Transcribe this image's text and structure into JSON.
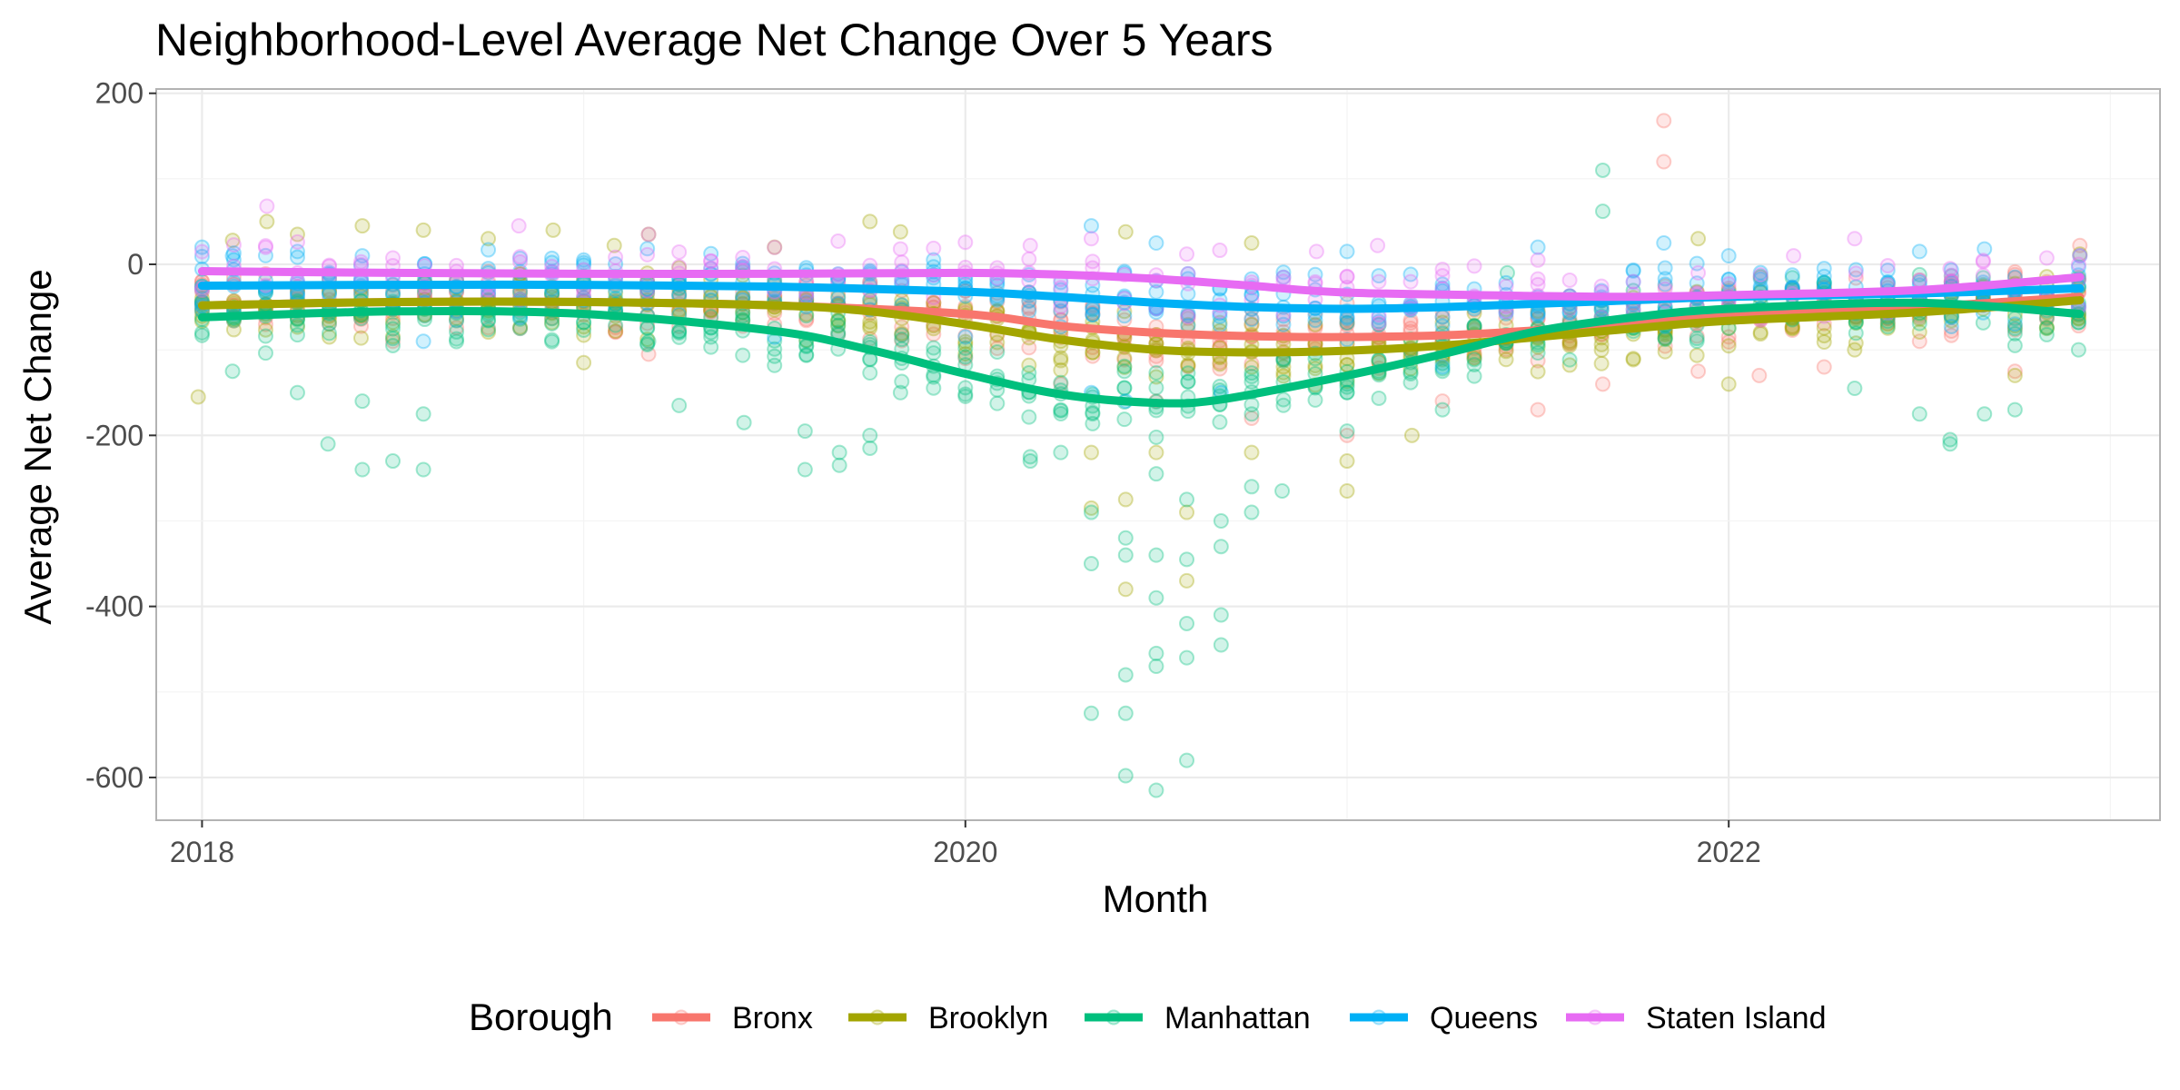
{
  "chart_data": {
    "type": "scatter",
    "title": "Neighborhood-Level Average Net Change Over 5 Years",
    "xlabel": "Month",
    "ylabel": "Average Net Change",
    "xlim": [
      2017.88,
      2023.13
    ],
    "ylim": [
      -650,
      205
    ],
    "x_ticks": [
      2018,
      2020,
      2022
    ],
    "x_tick_labels": [
      "2018",
      "2020",
      "2022"
    ],
    "y_ticks": [
      200,
      0,
      -200,
      -400,
      -600
    ],
    "y_tick_labels": [
      "200",
      "0",
      "-200",
      "-400",
      "-600"
    ],
    "grid": true,
    "legend": {
      "title": "Borough",
      "position": "bottom",
      "entries": [
        "Bronx",
        "Brooklyn",
        "Manhattan",
        "Queens",
        "Staten Island"
      ]
    },
    "colors": {
      "Bronx": "#F8766D",
      "Brooklyn": "#A3A500",
      "Manhattan": "#00BF7D",
      "Queens": "#00B0F6",
      "Staten Island": "#E76BF3"
    },
    "series": [
      {
        "name": "Bronx",
        "smooth": [
          [
            2018.0,
            -48
          ],
          [
            2018.5,
            -44
          ],
          [
            2019.0,
            -44
          ],
          [
            2019.5,
            -48
          ],
          [
            2020.0,
            -58
          ],
          [
            2020.25,
            -72
          ],
          [
            2020.5,
            -80
          ],
          [
            2020.75,
            -84
          ],
          [
            2021.0,
            -85
          ],
          [
            2021.25,
            -83
          ],
          [
            2021.5,
            -77
          ],
          [
            2021.75,
            -68
          ],
          [
            2022.0,
            -60
          ],
          [
            2022.5,
            -50
          ],
          [
            2022.92,
            -38
          ]
        ],
        "points": [
          [
            2018.0,
            -20
          ],
          [
            2018.25,
            -60
          ],
          [
            2018.5,
            -90
          ],
          [
            2019.17,
            -105
          ],
          [
            2019.5,
            -70
          ],
          [
            2020.0,
            -110
          ],
          [
            2020.25,
            -140
          ],
          [
            2020.5,
            -160
          ],
          [
            2020.75,
            -180
          ],
          [
            2021.0,
            -200
          ],
          [
            2021.25,
            -160
          ],
          [
            2021.5,
            -170
          ],
          [
            2021.67,
            -140
          ],
          [
            2021.83,
            168
          ],
          [
            2021.83,
            120
          ],
          [
            2021.92,
            -125
          ],
          [
            2022.08,
            -130
          ],
          [
            2022.25,
            -120
          ],
          [
            2022.5,
            -90
          ],
          [
            2022.75,
            -125
          ],
          [
            2022.92,
            22
          ]
        ]
      },
      {
        "name": "Brooklyn",
        "smooth": [
          [
            2018.0,
            -48
          ],
          [
            2018.5,
            -44
          ],
          [
            2019.0,
            -44
          ],
          [
            2019.5,
            -48
          ],
          [
            2019.75,
            -55
          ],
          [
            2020.0,
            -70
          ],
          [
            2020.25,
            -88
          ],
          [
            2020.5,
            -100
          ],
          [
            2020.75,
            -103
          ],
          [
            2021.0,
            -101
          ],
          [
            2021.25,
            -95
          ],
          [
            2021.5,
            -85
          ],
          [
            2021.75,
            -75
          ],
          [
            2022.0,
            -66
          ],
          [
            2022.5,
            -56
          ],
          [
            2022.92,
            -42
          ]
        ],
        "points": [
          [
            2017.99,
            -155
          ],
          [
            2018.08,
            28
          ],
          [
            2018.17,
            50
          ],
          [
            2018.25,
            35
          ],
          [
            2018.42,
            45
          ],
          [
            2018.58,
            40
          ],
          [
            2018.75,
            30
          ],
          [
            2018.92,
            40
          ],
          [
            2019.0,
            -115
          ],
          [
            2019.08,
            22
          ],
          [
            2019.17,
            35
          ],
          [
            2019.5,
            20
          ],
          [
            2019.75,
            50
          ],
          [
            2019.83,
            38
          ],
          [
            2020.33,
            -220
          ],
          [
            2020.33,
            -285
          ],
          [
            2020.42,
            38
          ],
          [
            2020.42,
            -275
          ],
          [
            2020.42,
            -380
          ],
          [
            2020.5,
            -220
          ],
          [
            2020.58,
            -290
          ],
          [
            2020.58,
            -370
          ],
          [
            2020.75,
            25
          ],
          [
            2020.75,
            -220
          ],
          [
            2021.0,
            -230
          ],
          [
            2021.0,
            -265
          ],
          [
            2021.17,
            -200
          ],
          [
            2021.92,
            30
          ],
          [
            2022.0,
            -140
          ],
          [
            2022.33,
            -100
          ],
          [
            2022.75,
            -130
          ],
          [
            2022.92,
            12
          ]
        ]
      },
      {
        "name": "Manhattan",
        "smooth": [
          [
            2018.0,
            -62
          ],
          [
            2018.5,
            -55
          ],
          [
            2019.0,
            -58
          ],
          [
            2019.5,
            -78
          ],
          [
            2019.75,
            -100
          ],
          [
            2020.0,
            -128
          ],
          [
            2020.25,
            -152
          ],
          [
            2020.5,
            -162
          ],
          [
            2020.67,
            -158
          ],
          [
            2021.0,
            -130
          ],
          [
            2021.25,
            -105
          ],
          [
            2021.5,
            -78
          ],
          [
            2021.75,
            -62
          ],
          [
            2022.0,
            -52
          ],
          [
            2022.5,
            -45
          ],
          [
            2022.92,
            -58
          ]
        ],
        "points": [
          [
            2018.0,
            -80
          ],
          [
            2018.08,
            -125
          ],
          [
            2018.25,
            -150
          ],
          [
            2018.33,
            -210
          ],
          [
            2018.42,
            -240
          ],
          [
            2018.42,
            -160
          ],
          [
            2018.5,
            -230
          ],
          [
            2018.58,
            -240
          ],
          [
            2018.58,
            -175
          ],
          [
            2019.17,
            -90
          ],
          [
            2019.25,
            -165
          ],
          [
            2019.42,
            -185
          ],
          [
            2019.58,
            -240
          ],
          [
            2019.58,
            -195
          ],
          [
            2019.67,
            -235
          ],
          [
            2019.67,
            -220
          ],
          [
            2019.75,
            -200
          ],
          [
            2019.75,
            -215
          ],
          [
            2019.83,
            -150
          ],
          [
            2020.17,
            -225
          ],
          [
            2020.17,
            -230
          ],
          [
            2020.25,
            -220
          ],
          [
            2020.33,
            -350
          ],
          [
            2020.33,
            -290
          ],
          [
            2020.33,
            -525
          ],
          [
            2020.42,
            -320
          ],
          [
            2020.42,
            -340
          ],
          [
            2020.42,
            -480
          ],
          [
            2020.42,
            -525
          ],
          [
            2020.42,
            -598
          ],
          [
            2020.5,
            -245
          ],
          [
            2020.5,
            -390
          ],
          [
            2020.5,
            -340
          ],
          [
            2020.5,
            -455
          ],
          [
            2020.5,
            -470
          ],
          [
            2020.5,
            -615
          ],
          [
            2020.58,
            -275
          ],
          [
            2020.58,
            -345
          ],
          [
            2020.58,
            -420
          ],
          [
            2020.58,
            -460
          ],
          [
            2020.58,
            -580
          ],
          [
            2020.67,
            -300
          ],
          [
            2020.67,
            -330
          ],
          [
            2020.67,
            -410
          ],
          [
            2020.67,
            -445
          ],
          [
            2020.75,
            -260
          ],
          [
            2020.75,
            -290
          ],
          [
            2020.83,
            -265
          ],
          [
            2021.0,
            -195
          ],
          [
            2021.25,
            -170
          ],
          [
            2021.42,
            -10
          ],
          [
            2021.67,
            110
          ],
          [
            2021.67,
            62
          ],
          [
            2022.33,
            -145
          ],
          [
            2022.5,
            -175
          ],
          [
            2022.58,
            -210
          ],
          [
            2022.58,
            -205
          ],
          [
            2022.67,
            -175
          ],
          [
            2022.75,
            -170
          ]
        ]
      },
      {
        "name": "Queens",
        "smooth": [
          [
            2018.0,
            -25
          ],
          [
            2018.5,
            -24
          ],
          [
            2019.0,
            -24
          ],
          [
            2019.5,
            -26
          ],
          [
            2020.0,
            -32
          ],
          [
            2020.25,
            -38
          ],
          [
            2020.5,
            -45
          ],
          [
            2020.75,
            -50
          ],
          [
            2021.0,
            -52
          ],
          [
            2021.25,
            -50
          ],
          [
            2021.5,
            -46
          ],
          [
            2021.75,
            -42
          ],
          [
            2022.0,
            -38
          ],
          [
            2022.5,
            -34
          ],
          [
            2022.92,
            -28
          ]
        ],
        "points": [
          [
            2018.0,
            20
          ],
          [
            2018.08,
            10
          ],
          [
            2018.25,
            15
          ],
          [
            2018.42,
            10
          ],
          [
            2018.58,
            -90
          ],
          [
            2019.0,
            5
          ],
          [
            2019.5,
            -85
          ],
          [
            2020.0,
            -85
          ],
          [
            2020.33,
            45
          ],
          [
            2020.33,
            -150
          ],
          [
            2020.42,
            -160
          ],
          [
            2020.5,
            25
          ],
          [
            2020.67,
            -150
          ],
          [
            2021.0,
            15
          ],
          [
            2021.25,
            -120
          ],
          [
            2021.5,
            20
          ],
          [
            2021.83,
            25
          ],
          [
            2022.0,
            10
          ],
          [
            2022.5,
            15
          ],
          [
            2022.67,
            18
          ],
          [
            2022.92,
            10
          ]
        ]
      },
      {
        "name": "Staten Island",
        "smooth": [
          [
            2018.0,
            -8
          ],
          [
            2018.5,
            -10
          ],
          [
            2019.0,
            -11
          ],
          [
            2019.5,
            -11
          ],
          [
            2020.0,
            -10
          ],
          [
            2020.25,
            -12
          ],
          [
            2020.5,
            -17
          ],
          [
            2020.75,
            -25
          ],
          [
            2021.0,
            -33
          ],
          [
            2021.5,
            -37
          ],
          [
            2021.75,
            -38
          ],
          [
            2022.0,
            -36
          ],
          [
            2022.5,
            -30
          ],
          [
            2022.92,
            -15
          ]
        ],
        "points": [
          [
            2018.17,
            68
          ],
          [
            2018.83,
            45
          ],
          [
            2019.17,
            35
          ],
          [
            2019.83,
            18
          ],
          [
            2020.17,
            22
          ],
          [
            2020.33,
            30
          ],
          [
            2020.58,
            12
          ],
          [
            2020.92,
            15
          ],
          [
            2021.08,
            22
          ],
          [
            2021.5,
            5
          ],
          [
            2021.92,
            -10
          ],
          [
            2022.17,
            10
          ],
          [
            2022.33,
            30
          ],
          [
            2022.58,
            -5
          ],
          [
            2022.92,
            10
          ]
        ]
      }
    ]
  }
}
